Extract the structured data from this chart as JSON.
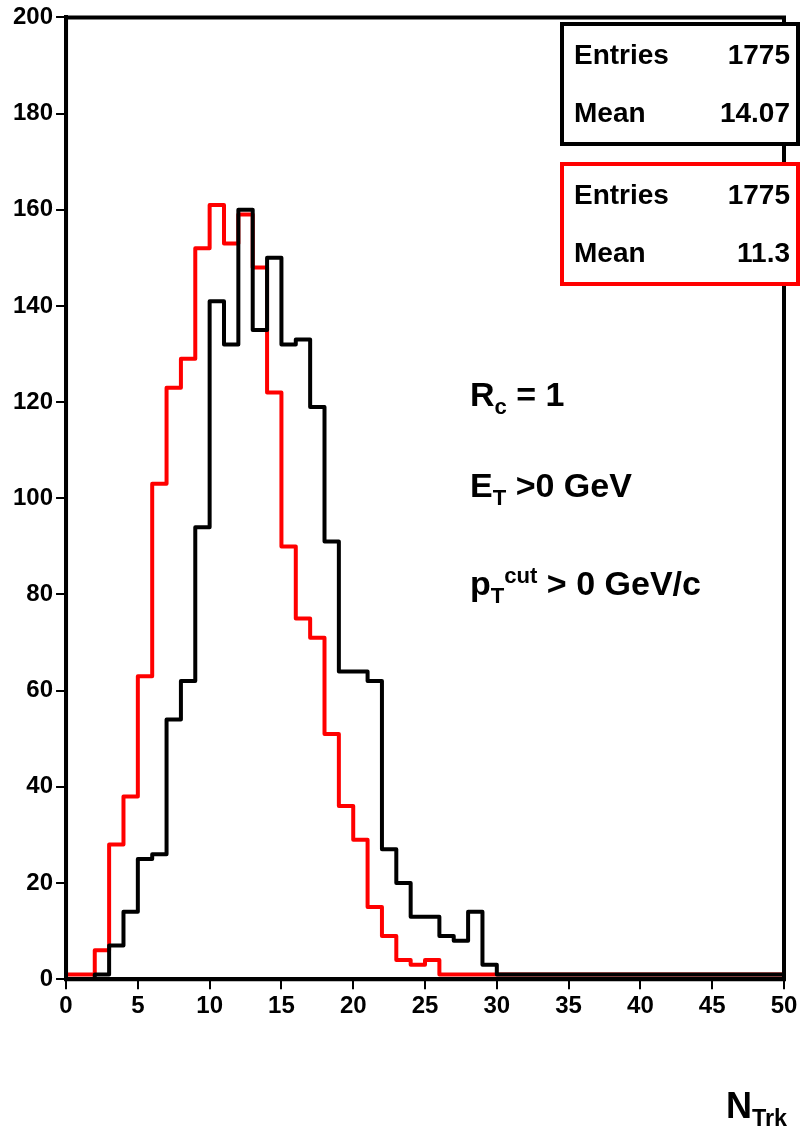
{
  "chart_data": {
    "type": "histogram",
    "xlabel": "N$_{Trk}$",
    "bins": [
      0,
      1,
      2,
      3,
      4,
      5,
      6,
      7,
      8,
      9,
      10,
      11,
      12,
      13,
      14,
      15,
      16,
      17,
      18,
      19,
      20,
      21,
      22,
      23,
      24,
      25,
      26,
      27,
      28,
      29,
      30,
      31,
      32,
      33,
      34,
      35,
      36,
      37,
      38,
      39,
      40,
      41,
      42,
      43,
      44,
      45,
      46,
      47,
      48,
      49,
      50
    ],
    "series": [
      {
        "color": "#000000",
        "values": [
          0,
          0,
          1,
          7,
          14,
          25,
          26,
          54,
          62,
          94,
          141,
          132,
          160,
          135,
          150,
          132,
          133,
          119,
          91,
          64,
          64,
          62,
          27,
          20,
          13,
          13,
          9,
          8,
          14,
          3,
          1,
          1,
          1,
          1,
          1,
          1,
          1,
          1,
          1,
          1,
          1,
          1,
          1,
          1,
          1,
          1,
          1,
          1,
          1,
          1
        ]
      },
      {
        "color": "#ff0000",
        "values": [
          1,
          1,
          6,
          28,
          38,
          63,
          103,
          123,
          129,
          152,
          161,
          153,
          159,
          148,
          122,
          90,
          75,
          71,
          51,
          36,
          29,
          15,
          9,
          4,
          3,
          4,
          1,
          1,
          1,
          1,
          1,
          1,
          1,
          1,
          1,
          1,
          1,
          1,
          1,
          1,
          1,
          1,
          1,
          1,
          1,
          1,
          1,
          1,
          1,
          1
        ]
      }
    ],
    "xlim": [
      0,
      50
    ],
    "xticks": [
      0,
      5,
      10,
      15,
      20,
      25,
      30,
      35,
      40,
      45,
      50
    ],
    "ylim": [
      0,
      200
    ],
    "yticks": [
      0,
      20,
      40,
      60,
      80,
      100,
      120,
      140,
      160,
      180,
      200
    ],
    "grid": false,
    "legend": false,
    "annotations": [
      "Entries",
      "1775",
      "Mean",
      "14.07",
      "Entries",
      "1775",
      "Mean",
      "11.3",
      "R$_{c}$ = 1",
      "E$_{T}$ >0 GeV",
      "p$_{T}$$^{cut}$ > 0 GeV/c"
    ]
  }
}
